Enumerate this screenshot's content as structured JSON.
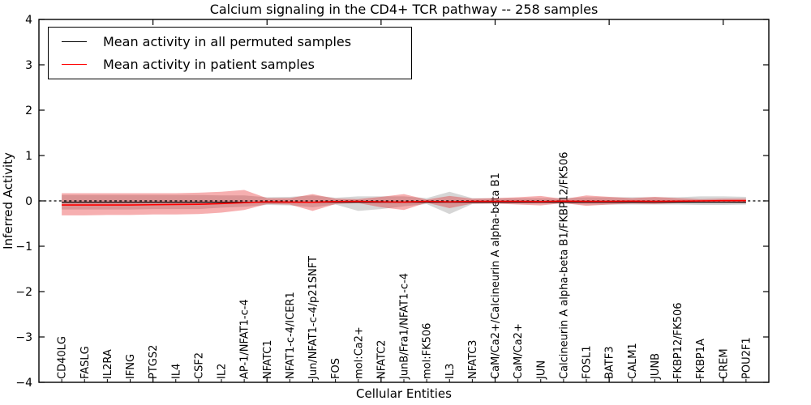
{
  "title": "Calcium signaling in the CD4+ TCR pathway -- 258 samples",
  "legend": {
    "items": [
      {
        "label": "Mean activity in all permuted samples",
        "color": "#000000"
      },
      {
        "label": "Mean activity in patient samples",
        "color": "#ff0000"
      }
    ],
    "position": "upper left"
  },
  "colors": {
    "patient_line": "#ff0000",
    "permuted_line": "#000000",
    "patient_band": "rgba(228,26,28,0.35)",
    "permuted_band": "rgba(128,128,128,0.32)",
    "zero_line": "#000000",
    "axis": "#000000",
    "background": "#ffffff"
  },
  "chart_data": {
    "type": "line",
    "title": "Calcium signaling in the CD4+ TCR pathway -- 258 samples",
    "xlabel": "Cellular Entities",
    "ylabel": "Inferred Activity",
    "ylim": [
      -4,
      4
    ],
    "yticks": [
      -4,
      -3,
      -2,
      -1,
      0,
      1,
      2,
      3,
      4
    ],
    "x_major_ticks": [
      5,
      10,
      15,
      20,
      25,
      30
    ],
    "grid": false,
    "legend_position": "upper left",
    "categories": [
      "CD40LG",
      "FASLG",
      "IL2RA",
      "IFNG",
      "PTGS2",
      "IL4",
      "CSF2",
      "IL2",
      "AP-1/NFAT1-c-4",
      "NFATC1",
      "NFAT1-c-4/ICER1",
      "Jun/NFAT1-c-4/p21SNFT",
      "FOS",
      "mol:Ca2+",
      "NFATC2",
      "JunB/Fra1/NFAT1-c-4",
      "mol:FK506",
      "IL3",
      "NFATC3",
      "CaM/Ca2+/Calcineurin A alpha-beta B1",
      "CaM/Ca2+",
      "JUN",
      "Calcineurin A alpha-beta B1/FKBP12/FK506",
      "FOSL1",
      "BATF3",
      "CALM1",
      "JUNB",
      "FKBP12/FK506",
      "FKBP1A",
      "CREM",
      "POU2F1"
    ],
    "zero_line": {
      "y": 0,
      "style": "dashed",
      "color": "#000000"
    },
    "series": [
      {
        "name": "Mean activity in all permuted samples",
        "kind": "line",
        "color": "#000000",
        "width": 1.2,
        "values": [
          -0.03,
          -0.03,
          -0.03,
          -0.03,
          -0.03,
          -0.03,
          -0.03,
          -0.03,
          -0.03,
          -0.03,
          -0.03,
          -0.03,
          -0.03,
          -0.03,
          -0.03,
          -0.03,
          -0.03,
          -0.03,
          -0.03,
          -0.03,
          -0.03,
          -0.03,
          -0.03,
          -0.03,
          -0.03,
          -0.03,
          -0.03,
          -0.03,
          -0.03,
          -0.03,
          -0.03
        ]
      },
      {
        "name": "Mean activity in patient samples",
        "kind": "line",
        "color": "#ff0000",
        "width": 1.6,
        "values": [
          -0.09,
          -0.09,
          -0.09,
          -0.09,
          -0.085,
          -0.08,
          -0.075,
          -0.06,
          -0.04,
          -0.02,
          -0.025,
          -0.03,
          -0.015,
          -0.01,
          -0.02,
          -0.025,
          -0.01,
          -0.02,
          -0.01,
          -0.01,
          -0.01,
          -0.015,
          -0.005,
          -0.01,
          -0.01,
          -0.005,
          -0.01,
          -0.005,
          0.0,
          0.005,
          0.005
        ]
      },
      {
        "name": "Std band of permuted samples",
        "kind": "band",
        "color": "rgba(128,128,128,0.32)",
        "upper": [
          0.13,
          0.13,
          0.13,
          0.13,
          0.13,
          0.13,
          0.13,
          0.12,
          0.12,
          0.08,
          0.09,
          0.12,
          0.07,
          0.1,
          0.1,
          0.1,
          0.06,
          0.2,
          0.06,
          0.06,
          0.06,
          0.06,
          0.06,
          0.08,
          0.08,
          0.08,
          0.08,
          0.08,
          0.1,
          0.1,
          0.09
        ],
        "lower": [
          -0.19,
          -0.19,
          -0.19,
          -0.19,
          -0.18,
          -0.18,
          -0.18,
          -0.15,
          -0.13,
          -0.09,
          -0.1,
          -0.14,
          -0.08,
          -0.22,
          -0.18,
          -0.12,
          -0.07,
          -0.29,
          -0.07,
          -0.06,
          -0.06,
          -0.06,
          -0.06,
          -0.08,
          -0.08,
          -0.08,
          -0.08,
          -0.08,
          -0.09,
          -0.09,
          -0.08
        ]
      },
      {
        "name": "Std band of patient samples",
        "kind": "band",
        "color": "rgba(228,26,28,0.35)",
        "upper": [
          0.17,
          0.17,
          0.17,
          0.17,
          0.17,
          0.17,
          0.18,
          0.2,
          0.24,
          0.06,
          0.06,
          0.15,
          0.05,
          0.04,
          0.09,
          0.15,
          0.03,
          0.11,
          0.05,
          0.06,
          0.08,
          0.11,
          0.04,
          0.12,
          0.09,
          0.06,
          0.09,
          0.06,
          0.04,
          0.05,
          0.05
        ],
        "lower": [
          -0.32,
          -0.32,
          -0.31,
          -0.31,
          -0.3,
          -0.3,
          -0.29,
          -0.26,
          -0.2,
          -0.07,
          -0.08,
          -0.22,
          -0.07,
          -0.05,
          -0.14,
          -0.2,
          -0.04,
          -0.16,
          -0.06,
          -0.06,
          -0.08,
          -0.1,
          -0.05,
          -0.11,
          -0.08,
          -0.06,
          -0.07,
          -0.05,
          -0.04,
          -0.04,
          -0.05
        ]
      }
    ]
  }
}
